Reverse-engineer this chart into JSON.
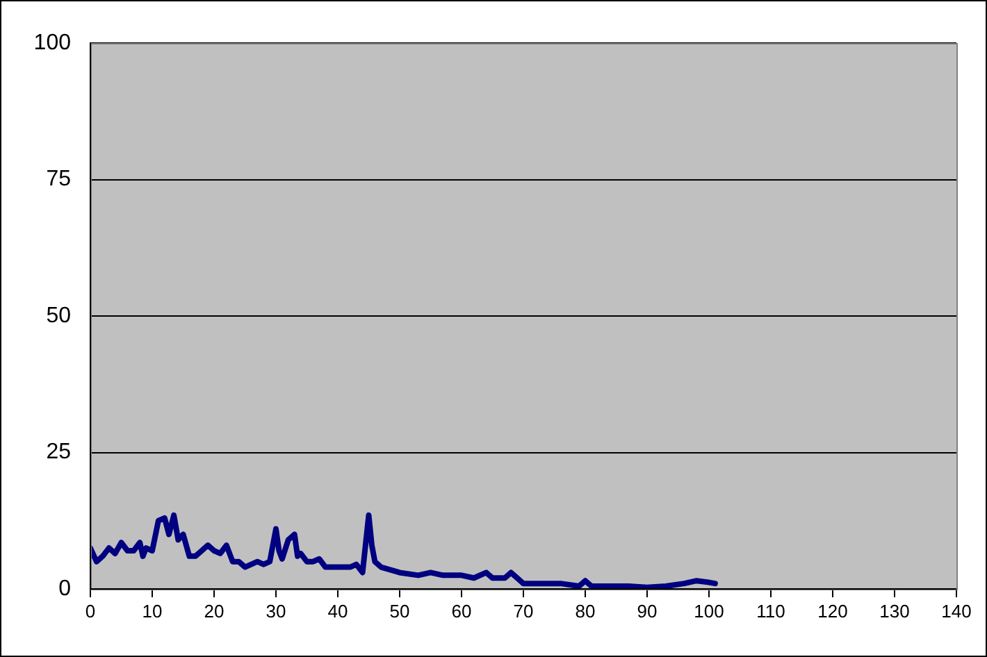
{
  "chart_data": {
    "type": "line",
    "x": [
      0,
      1,
      2,
      3,
      4,
      5,
      6,
      7,
      8,
      8.5,
      9,
      10,
      11,
      12,
      12.7,
      13.5,
      14.2,
      15,
      16,
      17,
      18,
      19,
      20,
      21,
      22,
      23,
      24,
      25,
      26,
      27,
      28,
      29,
      30,
      30.5,
      31,
      32,
      33,
      33.5,
      34,
      35,
      36,
      37,
      38,
      40,
      42,
      43,
      44,
      45,
      45.5,
      46,
      47,
      50,
      53,
      55,
      57,
      60,
      62,
      64,
      65,
      67,
      68,
      69,
      70,
      73,
      76,
      79,
      80,
      81,
      84,
      87,
      90,
      93,
      96,
      98,
      100,
      101
    ],
    "series": [
      {
        "color": "#000080",
        "values": [
          7.5,
          5,
          6,
          7.5,
          6.5,
          8.5,
          7,
          7,
          8.5,
          6,
          7.5,
          7,
          12.5,
          13,
          10,
          13.5,
          9,
          10,
          6,
          6,
          7,
          8,
          7,
          6.5,
          8,
          5,
          5,
          4,
          4.5,
          5,
          4.5,
          5,
          11,
          7,
          5.5,
          9,
          10,
          6,
          6.5,
          5,
          5,
          5.5,
          4,
          4,
          4,
          4.5,
          3,
          13.5,
          8,
          5,
          4,
          3,
          2.5,
          3,
          2.5,
          2.5,
          2,
          3,
          2,
          2,
          3,
          2,
          1,
          1,
          1,
          0.5,
          1.5,
          0.5,
          0.5,
          0.5,
          0.3,
          0.5,
          1,
          1.5,
          1.2,
          1
        ]
      }
    ],
    "xlim": [
      0,
      140
    ],
    "xticks": [
      0,
      10,
      20,
      30,
      40,
      50,
      60,
      70,
      80,
      90,
      100,
      110,
      120,
      130,
      140
    ],
    "ylim": [
      0,
      100
    ],
    "yticks": [
      0,
      25,
      50,
      75,
      100
    ],
    "grid": "y",
    "legend": false,
    "marker": "none",
    "line_style": "solid"
  }
}
